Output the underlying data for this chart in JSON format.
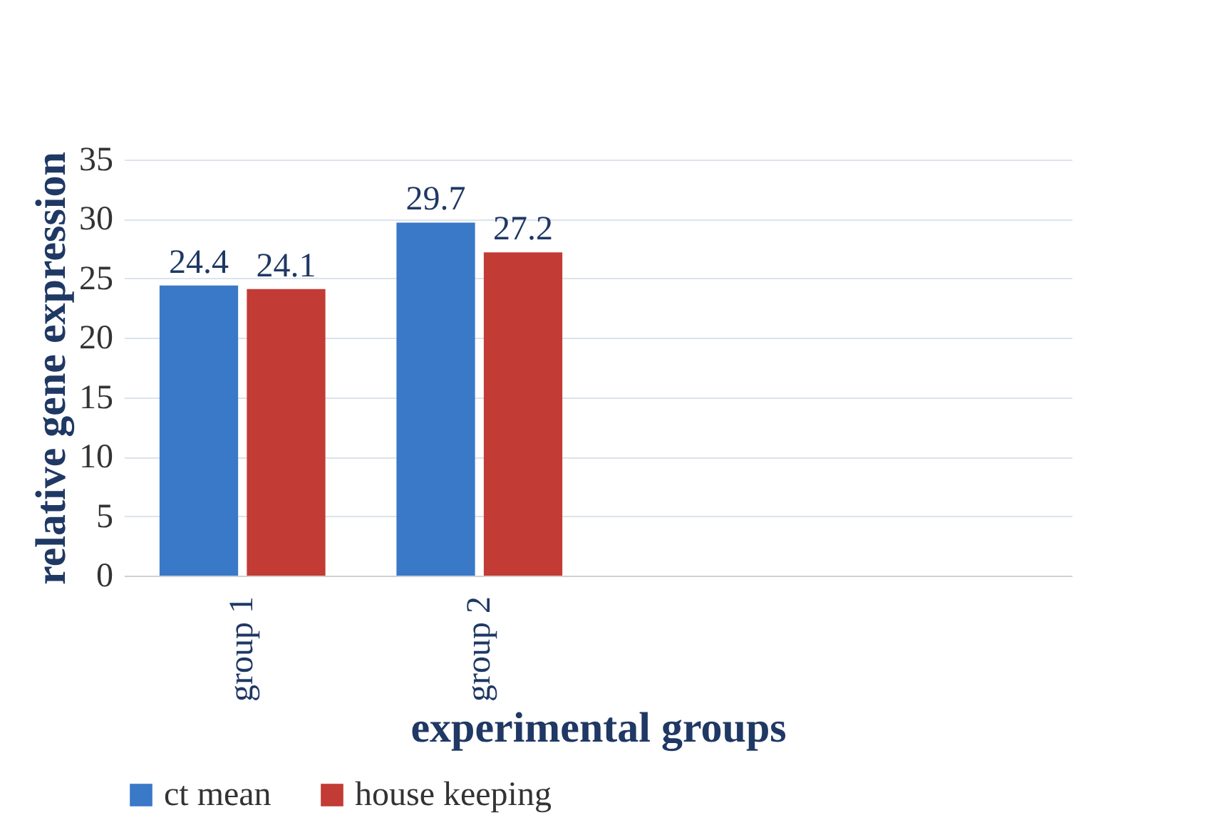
{
  "chart_data": {
    "type": "bar",
    "xlabel": "experimental groups",
    "ylabel": "relative gene expression",
    "categories": [
      "group 1",
      "group 2",
      null,
      null
    ],
    "series": [
      {
        "name": "ct mean",
        "color": "#3a78c8",
        "values": [
          24.4,
          29.7,
          null,
          null
        ]
      },
      {
        "name": "house keeping",
        "color": "#c23b35",
        "values": [
          24.1,
          27.2,
          null,
          null
        ]
      }
    ],
    "ylim": [
      0,
      35
    ],
    "yticks": [
      0,
      5,
      10,
      15,
      20,
      25,
      30,
      35
    ],
    "grid": "y",
    "legend": "bottom",
    "data_labels": true
  }
}
